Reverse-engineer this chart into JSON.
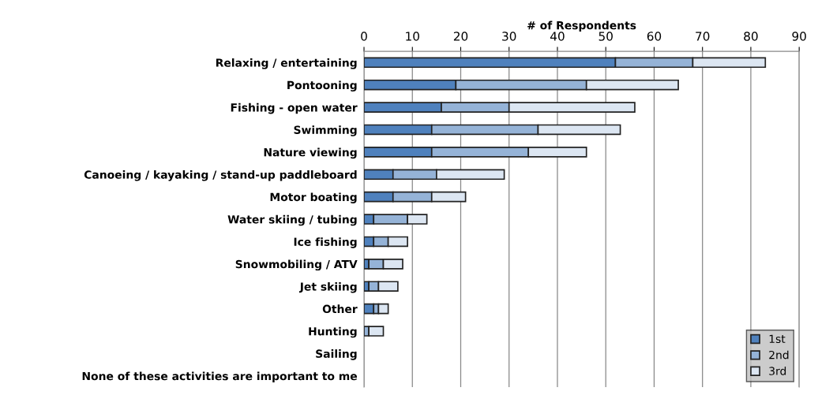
{
  "chart_data": {
    "type": "bar",
    "orientation": "horizontal",
    "stacked": true,
    "xlabel": "# of Respondents",
    "categories": [
      "Relaxing / entertaining",
      "Pontooning",
      "Fishing - open water",
      "Swimming",
      "Nature viewing",
      "Canoeing / kayaking / stand-up paddleboard",
      "Motor boating",
      "Water skiing / tubing",
      "Ice fishing",
      "Snowmobiling / ATV",
      "Jet skiing",
      "Other",
      "Hunting",
      "Sailing",
      "None of these activities are important to me"
    ],
    "series": [
      {
        "name": "1st",
        "color": "#4f81bd",
        "values": [
          52,
          19,
          16,
          14,
          14,
          6,
          6,
          2,
          2,
          1,
          1,
          2,
          0,
          0,
          0
        ]
      },
      {
        "name": "2nd",
        "color": "#95b3d7",
        "values": [
          16,
          27,
          14,
          22,
          20,
          9,
          8,
          7,
          3,
          3,
          2,
          1,
          1,
          0,
          0
        ]
      },
      {
        "name": "3rd",
        "color": "#dce6f2",
        "values": [
          15,
          19,
          26,
          17,
          12,
          14,
          7,
          4,
          4,
          4,
          4,
          2,
          3,
          0,
          0
        ]
      }
    ],
    "xlim": [
      0,
      90
    ],
    "xticks": [
      0,
      10,
      20,
      30,
      40,
      50,
      60,
      70,
      80,
      90
    ],
    "grid": "x",
    "legend": "bottom right"
  }
}
